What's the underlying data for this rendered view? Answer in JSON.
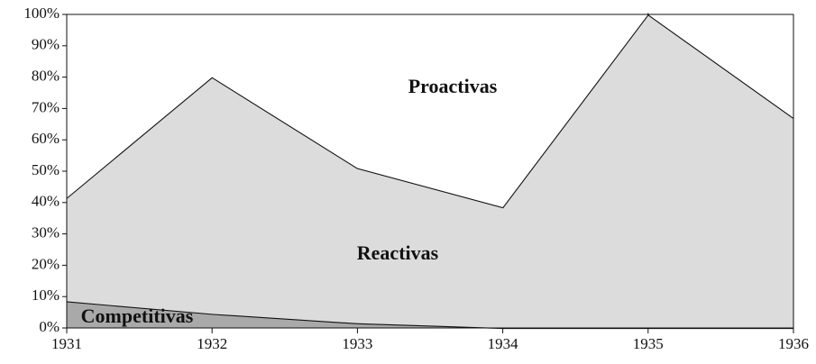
{
  "chart_data": {
    "type": "stacked_area",
    "x": [
      1931,
      1932,
      1933,
      1934,
      1935,
      1936
    ],
    "series": [
      {
        "name": "Competitivas",
        "color": "#a9a9a9",
        "values": [
          8.5,
          4.5,
          1.5,
          0,
          0,
          0
        ]
      },
      {
        "name": "Reactivas",
        "color": "#dcdcdc",
        "values": [
          33,
          75.5,
          49.5,
          38.5,
          100,
          67
        ]
      },
      {
        "name": "Proactivas",
        "color": "#ffffff",
        "values": [
          58.5,
          20,
          49,
          61.5,
          0,
          33
        ]
      }
    ],
    "xlim": [
      1931,
      1936
    ],
    "xticks": [
      1931,
      1932,
      1933,
      1934,
      1935,
      1936
    ],
    "ylim": [
      0,
      100
    ],
    "yticks": [
      {
        "value": 0,
        "label": "0%"
      },
      {
        "value": 10,
        "label": "10%"
      },
      {
        "value": 20,
        "label": "20%"
      },
      {
        "value": 30,
        "label": "30%"
      },
      {
        "value": 40,
        "label": "40%"
      },
      {
        "value": 50,
        "label": "50%"
      },
      {
        "value": 60,
        "label": "60%"
      },
      {
        "value": 70,
        "label": "70%"
      },
      {
        "value": 80,
        "label": "80%"
      },
      {
        "value": 90,
        "label": "90%"
      },
      {
        "value": 100,
        "label": "100%"
      }
    ]
  }
}
